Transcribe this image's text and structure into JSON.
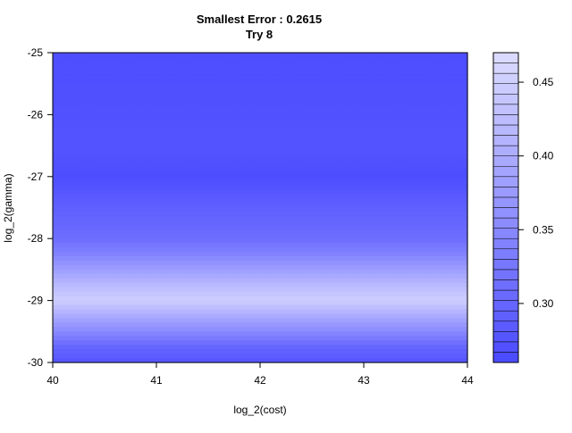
{
  "chart_data": {
    "type": "heatmap",
    "title": "Smallest Error : 0.2615",
    "subtitle": "Try 8",
    "xlabel": "log_2(cost)",
    "ylabel": "log_2(gamma)",
    "xlim": [
      40,
      44
    ],
    "ylim": [
      -30,
      -25
    ],
    "x_ticks": [
      "40",
      "41",
      "42",
      "43",
      "44"
    ],
    "y_ticks": [
      "-30",
      "-29",
      "-28",
      "-27",
      "-26",
      "-25"
    ],
    "legend": {
      "placement": "right",
      "range": [
        0.26,
        0.47
      ],
      "tick_values": [
        0.3,
        0.35,
        0.4,
        0.45
      ],
      "tick_labels": [
        "0.30",
        "0.35",
        "0.40",
        "0.45"
      ],
      "levels": 30,
      "color_low": "#4a4aff",
      "color_high": "#dcdcff"
    },
    "grid": false,
    "x": [
      40,
      41,
      42,
      43,
      44
    ],
    "y": [
      -30,
      -29.75,
      -29.5,
      -29.25,
      -29,
      -28.75,
      -28.5,
      -28.25,
      -28,
      -27.5,
      -27,
      -26.5,
      -26,
      -25.5,
      -25
    ],
    "z": [
      [
        0.275,
        0.275,
        0.275,
        0.275,
        0.275
      ],
      [
        0.3,
        0.3,
        0.3,
        0.3,
        0.3
      ],
      [
        0.35,
        0.35,
        0.35,
        0.35,
        0.35
      ],
      [
        0.4,
        0.4,
        0.4,
        0.4,
        0.4
      ],
      [
        0.45,
        0.45,
        0.45,
        0.45,
        0.45
      ],
      [
        0.42,
        0.42,
        0.42,
        0.42,
        0.42
      ],
      [
        0.38,
        0.38,
        0.38,
        0.38,
        0.38
      ],
      [
        0.34,
        0.34,
        0.34,
        0.34,
        0.34
      ],
      [
        0.31,
        0.31,
        0.31,
        0.31,
        0.31
      ],
      [
        0.29,
        0.29,
        0.29,
        0.29,
        0.29
      ],
      [
        0.265,
        0.265,
        0.265,
        0.265,
        0.265
      ],
      [
        0.275,
        0.275,
        0.275,
        0.275,
        0.275
      ],
      [
        0.27,
        0.27,
        0.27,
        0.27,
        0.27
      ],
      [
        0.268,
        0.268,
        0.268,
        0.268,
        0.268
      ],
      [
        0.266,
        0.266,
        0.266,
        0.266,
        0.266
      ]
    ]
  }
}
